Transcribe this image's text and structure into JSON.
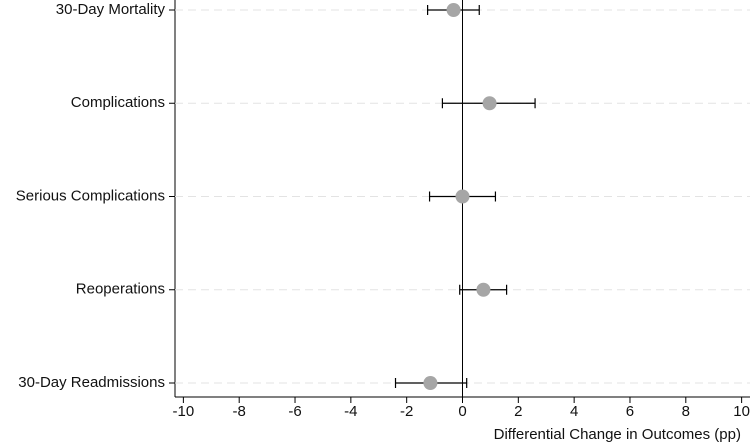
{
  "chart_data": {
    "type": "errorbar",
    "xlabel": "Differential Change in Outcomes (pp)",
    "categories": [
      "30-Day Mortality",
      "Complications",
      "Serious Complications",
      "Reoperations",
      "30-Day Readmissions"
    ],
    "values": [
      -0.32,
      0.97,
      0.0,
      0.75,
      -1.15
    ],
    "ci_low": [
      -1.25,
      -0.72,
      -1.18,
      -0.1,
      -2.4
    ],
    "ci_high": [
      0.6,
      2.6,
      1.18,
      1.58,
      0.15
    ],
    "color": "#a6a6a6",
    "xlim": [
      -10.3,
      10.3
    ],
    "xticks": [
      -10,
      -8,
      -6,
      -4,
      -2,
      0,
      2,
      4,
      6,
      8,
      10
    ],
    "grid": true
  }
}
